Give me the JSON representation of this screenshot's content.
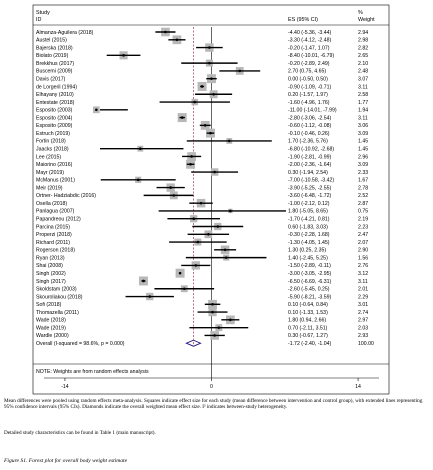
{
  "chart_data": {
    "type": "forest",
    "header": {
      "study_line1": "Study",
      "study_line2": "ID",
      "es": "ES (95% CI)",
      "weight_line1": "%",
      "weight_line2": "Weight"
    },
    "xticks": [
      -14,
      0,
      14
    ],
    "xlim": [
      -16,
      16
    ],
    "studies": [
      {
        "id": "Almanza-Aguilera (2018)",
        "es": -4.4,
        "lo": -5.36,
        "hi": -3.44,
        "label": "-4.40 (-5.36, -3.44)",
        "weight": "2.94",
        "w": 2.94
      },
      {
        "id": "Austel (2015)",
        "es": -3.3,
        "lo": -4.12,
        "hi": -2.48,
        "label": "-3.30 (-4.12, -2.48)",
        "weight": "2.98",
        "w": 2.98
      },
      {
        "id": "Bajerska (2018)",
        "es": -0.2,
        "lo": -1.47,
        "hi": 1.07,
        "label": "-0.20 (-1.47, 1.07)",
        "weight": "2.82",
        "w": 2.82
      },
      {
        "id": "Biolato (2019)",
        "es": -8.4,
        "lo": -10.01,
        "hi": -6.79,
        "label": "-8.40 (-10.01, -6.79)",
        "weight": "2.65",
        "w": 2.65
      },
      {
        "id": "Brekkhus (2017)",
        "es": -0.2,
        "lo": -2.89,
        "hi": 2.49,
        "label": "-0.20 (-2.89, 2.49)",
        "weight": "2.10",
        "w": 2.1
      },
      {
        "id": "Buscemi (2009)",
        "es": 2.7,
        "lo": 0.75,
        "hi": 4.65,
        "label": "2.70 (0.75, 4.65)",
        "weight": "2.48",
        "w": 2.48
      },
      {
        "id": "Davis (2017)",
        "es": 0.0,
        "lo": -0.5,
        "hi": 0.5,
        "label": "0.00 (-0.50, 0.50)",
        "weight": "3.07",
        "w": 3.07
      },
      {
        "id": "de Lorgeril (1994)",
        "es": -0.9,
        "lo": -1.09,
        "hi": -0.71,
        "label": "-0.90 (-1.09, -0.71)",
        "weight": "3.11",
        "w": 3.11
      },
      {
        "id": "Elhayany (2010)",
        "es": 0.2,
        "lo": -1.57,
        "hi": 1.97,
        "label": "0.20 (-1.57, 1.97)",
        "weight": "2.58",
        "w": 2.58
      },
      {
        "id": "Entestate (2018)",
        "es": -1.6,
        "lo": -4.96,
        "hi": 1.76,
        "label": "-1.60 (-4.96, 1.76)",
        "weight": "1.77",
        "w": 1.77
      },
      {
        "id": "Esposito (2003)",
        "es": -11.0,
        "lo": -14.01,
        "hi": -7.99,
        "label": "-11.00 (-14.01, -7.99)",
        "weight": "1.94",
        "w": 1.94
      },
      {
        "id": "Esposito (2004)",
        "es": -2.8,
        "lo": -3.06,
        "hi": -2.54,
        "label": "-2.80 (-3.06, -2.54)",
        "weight": "3.11",
        "w": 3.11
      },
      {
        "id": "Esposito (2009)",
        "es": -0.6,
        "lo": -1.12,
        "hi": -0.08,
        "label": "-0.60 (-1.12, -0.08)",
        "weight": "3.06",
        "w": 3.06
      },
      {
        "id": "Estruch (2019)",
        "es": -0.1,
        "lo": -0.46,
        "hi": 0.26,
        "label": "-0.10 (-0.46, 0.26)",
        "weight": "3.09",
        "w": 3.09
      },
      {
        "id": "Fortin (2018)",
        "es": 1.7,
        "lo": -2.36,
        "hi": 5.76,
        "label": "1.70 (-2.36, 5.76)",
        "weight": "1.45",
        "w": 1.45
      },
      {
        "id": "Jaacks (2018)",
        "es": -6.8,
        "lo": -10.92,
        "hi": -2.68,
        "label": "-6.80 (-10.92, -2.68)",
        "weight": "1.45",
        "w": 1.45
      },
      {
        "id": "Lee (2015)",
        "es": -1.9,
        "lo": -2.81,
        "hi": -0.99,
        "label": "-1.90 (-2.81, -0.99)",
        "weight": "2.96",
        "w": 2.96
      },
      {
        "id": "Maiorino (2016)",
        "es": -2.0,
        "lo": -2.36,
        "hi": -1.64,
        "label": "-2.00 (-2.36, -1.64)",
        "weight": "3.09",
        "w": 3.09
      },
      {
        "id": "Mayr (2019)",
        "es": 0.3,
        "lo": -1.94,
        "hi": 2.54,
        "label": "0.30 (-1.94, 2.54)",
        "weight": "2.33",
        "w": 2.33
      },
      {
        "id": "McManus (2001)",
        "es": -7.0,
        "lo": -10.58,
        "hi": -3.42,
        "label": "-7.00 (-10.58, -3.42)",
        "weight": "1.67",
        "w": 1.67
      },
      {
        "id": "Meir (2019)",
        "es": -3.9,
        "lo": -5.25,
        "hi": -2.55,
        "label": "-3.90 (-5.25, -2.55)",
        "weight": "2.78",
        "w": 2.78
      },
      {
        "id": "Ortner- Hadziabdic (2016)",
        "es": -3.6,
        "lo": -6.48,
        "hi": -1.72,
        "label": "-3.60 (-6.48, -1.72)",
        "weight": "2.52",
        "w": 2.52
      },
      {
        "id": "Osella (2018)",
        "es": -1.0,
        "lo": -2.12,
        "hi": 0.12,
        "label": "-1.00 (-2.12, 0.12)",
        "weight": "2.87",
        "w": 2.87
      },
      {
        "id": "Panlagua (2007)",
        "es": 1.8,
        "lo": -5.05,
        "hi": 8.65,
        "label": "1.80 (-5.05, 8.65)",
        "weight": "0.75",
        "w": 0.75
      },
      {
        "id": "Papandreou (2012)",
        "es": -1.7,
        "lo": -4.21,
        "hi": 0.81,
        "label": "-1.70 (-4.21, 0.81)",
        "weight": "2.19",
        "w": 2.19
      },
      {
        "id": "Parcina (2015)",
        "es": 0.6,
        "lo": -1.83,
        "hi": 3.03,
        "label": "0.60 (-1.83, 3.03)",
        "weight": "2.23",
        "w": 2.23
      },
      {
        "id": "Properzi (2018)",
        "es": -0.3,
        "lo": -2.28,
        "hi": 1.68,
        "label": "-0.30 (-2.28, 1.68)",
        "weight": "2.47",
        "w": 2.47
      },
      {
        "id": "Richard (2011)",
        "es": -1.3,
        "lo": -4.05,
        "hi": 1.45,
        "label": "-1.30 (-4.05, 1.45)",
        "weight": "2.07",
        "w": 2.07
      },
      {
        "id": "Rogerson (2018)",
        "es": 1.3,
        "lo": 0.25,
        "hi": 2.35,
        "label": "1.30 (0.25, 2.35)",
        "weight": "2.90",
        "w": 2.9
      },
      {
        "id": "Ryan (2013)",
        "es": 1.4,
        "lo": -2.45,
        "hi": 5.25,
        "label": "1.40 (-2.45, 5.25)",
        "weight": "1.56",
        "w": 1.56
      },
      {
        "id": "Shai (2008)",
        "es": -1.5,
        "lo": -2.89,
        "hi": -0.11,
        "label": "-1.50 (-2.89, -0.11)",
        "weight": "2.76",
        "w": 2.76
      },
      {
        "id": "Singh (2002)",
        "es": -3.0,
        "lo": -3.05,
        "hi": -2.95,
        "label": "-3.00 (-3.05, -2.95)",
        "weight": "3.12",
        "w": 3.12
      },
      {
        "id": "Singh (2017)",
        "es": -6.5,
        "lo": -6.69,
        "hi": -6.31,
        "label": "-6.50 (-6.69, -6.31)",
        "weight": "3.11",
        "w": 3.11
      },
      {
        "id": "Skoldstam (2003)",
        "es": -2.6,
        "lo": -5.45,
        "hi": 0.25,
        "label": "-2.60 (-5.45, 0.25)",
        "weight": "2.01",
        "w": 2.01
      },
      {
        "id": "Skouroliakou (2018)",
        "es": -5.9,
        "lo": -8.21,
        "hi": -3.59,
        "label": "-5.90 (-8.21, -3.59)",
        "weight": "2.29",
        "w": 2.29
      },
      {
        "id": "Sofi (2018)",
        "es": 0.1,
        "lo": -0.64,
        "hi": 0.84,
        "label": "0.10 (-0.64, 0.84)",
        "weight": "3.01",
        "w": 3.01
      },
      {
        "id": "Thomazella (2011)",
        "es": 0.1,
        "lo": -1.33,
        "hi": 1.53,
        "label": "0.10 (-1.33, 1.53)",
        "weight": "2.74",
        "w": 2.74
      },
      {
        "id": "Wade (2018)",
        "es": 1.8,
        "lo": 0.94,
        "hi": 2.66,
        "label": "1.80 (0.94, 2.66)",
        "weight": "2.97",
        "w": 2.97
      },
      {
        "id": "Wade (2019)",
        "es": 0.7,
        "lo": -2.11,
        "hi": 3.51,
        "label": "0.70 (-2.11, 3.51)",
        "weight": "2.03",
        "w": 2.03
      },
      {
        "id": "Wardle (2000)",
        "es": 0.3,
        "lo": -0.67,
        "hi": 1.27,
        "label": "0.30 (-0.67, 1.27)",
        "weight": "2.93",
        "w": 2.93
      }
    ],
    "overall": {
      "id": "Overall  (I-squared = 98.6%, p = 0.000)",
      "es": -1.72,
      "lo": -2.4,
      "hi": -1.04,
      "label": "-1.72 (-2.40, -1.04)",
      "weight": "100.00"
    },
    "note": "NOTE: Weights are from random effects analysis",
    "colors": {
      "box": "#b8b8b8",
      "ci": "#000000",
      "overall_line": "#8b1a3a",
      "diamond": "#2a1a8a"
    }
  },
  "caption": "Mean differences were pooled using random effects meta-analysis. Squares indicate effect size for each study (mean difference between intervention and control group), with extended lines representing 95% confidence intervals (95% CIs). Diamonds indicate the overall weighted mean effect size. I² indicates between-study heterogeneity.",
  "caption2": "Detailed study characteristics can be found in Table 1 (main manuscript).",
  "figure_caption": "Figure S1. Forest plot for overall body weight estimate"
}
